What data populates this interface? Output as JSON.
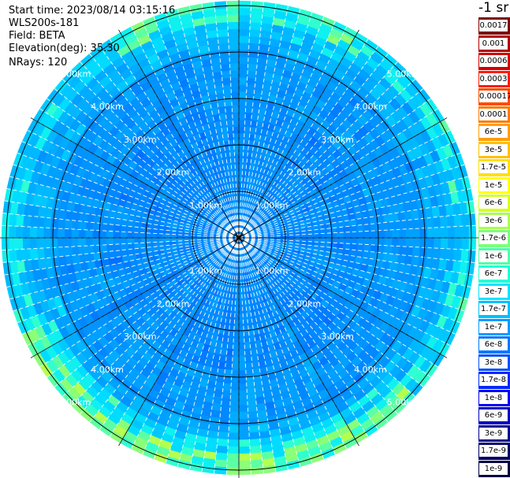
{
  "info": {
    "start_time": "Start time: 2023/08/14 03:15:16",
    "instrument": "WLS200s-181",
    "field": "Field: BETA",
    "elevation": "Elevation(deg): 35.30",
    "nrays": "NRays: 120"
  },
  "colorbar": {
    "unit": "-1 sr",
    "levels": [
      {
        "label": "0.0017",
        "color": "#7f0000"
      },
      {
        "label": "0.001",
        "color": "#b00000"
      },
      {
        "label": "0.0006",
        "color": "#d40000"
      },
      {
        "label": "0.0003",
        "color": "#ff1a00"
      },
      {
        "label": "0.00017",
        "color": "#ff4a00"
      },
      {
        "label": "0.0001",
        "color": "#ff7a00"
      },
      {
        "label": "6e-5",
        "color": "#ff9e00"
      },
      {
        "label": "3e-5",
        "color": "#ffc000"
      },
      {
        "label": "1.7e-5",
        "color": "#ffe000"
      },
      {
        "label": "1e-5",
        "color": "#ffff00"
      },
      {
        "label": "6e-6",
        "color": "#d8ff1e"
      },
      {
        "label": "3e-6",
        "color": "#a8ff4e"
      },
      {
        "label": "1.7e-6",
        "color": "#7cff7a"
      },
      {
        "label": "1e-6",
        "color": "#4effa8"
      },
      {
        "label": "6e-7",
        "color": "#20ffd6"
      },
      {
        "label": "3e-7",
        "color": "#00e4ff"
      },
      {
        "label": "1.7e-7",
        "color": "#00c0ff"
      },
      {
        "label": "1e-7",
        "color": "#009cff"
      },
      {
        "label": "6e-8",
        "color": "#0078ff"
      },
      {
        "label": "3e-8",
        "color": "#0050ff"
      },
      {
        "label": "1.7e-8",
        "color": "#0028ff"
      },
      {
        "label": "1e-8",
        "color": "#0000f0"
      },
      {
        "label": "6e-9",
        "color": "#0000c0"
      },
      {
        "label": "3e-9",
        "color": "#000090"
      },
      {
        "label": "1.7e-9",
        "color": "#000068"
      },
      {
        "label": "1e-9",
        "color": "#000040"
      }
    ]
  },
  "chart_data": {
    "type": "heatmap",
    "projection": "polar PPI",
    "field": "BETA",
    "elevation_deg": 35.3,
    "n_rays": 120,
    "range_rings_km": [
      1,
      2,
      3,
      4,
      5
    ],
    "ring_labels": [
      "1.00km",
      "2.00km",
      "3.00km",
      "4.00km",
      "5.00km"
    ],
    "radial_lines_deg": [
      0,
      30,
      60,
      90,
      120,
      150,
      180,
      210,
      240,
      270,
      300,
      330
    ],
    "max_range_km": 5.1,
    "background_level": "1e-7",
    "outer_ring_level": "1.7e-6",
    "grid": true
  }
}
